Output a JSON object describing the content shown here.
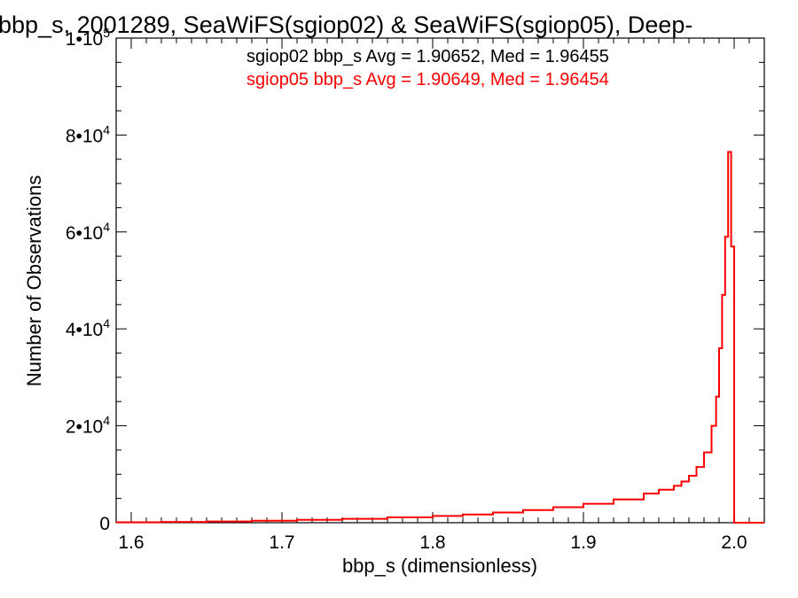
{
  "chart_data": {
    "type": "line",
    "title": "bbp_s, 2001289, SeaWiFS(sgiop02) & SeaWiFS(sgiop05), Deep-",
    "xlabel": "bbp_s (dimensionless)",
    "ylabel": "Number of Observations",
    "xlim": [
      1.59,
      2.02
    ],
    "ylim": [
      0,
      100000
    ],
    "x_ticks": [
      {
        "value": 1.6,
        "label": "1.6"
      },
      {
        "value": 1.7,
        "label": "1.7"
      },
      {
        "value": 1.8,
        "label": "1.8"
      },
      {
        "value": 1.9,
        "label": "1.9"
      },
      {
        "value": 2.0,
        "label": "2.0"
      }
    ],
    "y_ticks": [
      {
        "value": 0,
        "base": "0",
        "exp": ""
      },
      {
        "value": 20000,
        "base": "2•10",
        "exp": "4"
      },
      {
        "value": 40000,
        "base": "4•10",
        "exp": "4"
      },
      {
        "value": 60000,
        "base": "6•10",
        "exp": "4"
      },
      {
        "value": 80000,
        "base": "8•10",
        "exp": "4"
      },
      {
        "value": 100000,
        "base": "1•10",
        "exp": "5"
      }
    ],
    "annotations": [
      {
        "text": "sgiop02 bbp_s Avg = 1.90652, Med = 1.96455",
        "color": "#000000"
      },
      {
        "text": "sgiop05 bbp_s Avg = 1.90649, Med = 1.96454",
        "color": "#ff0000"
      }
    ],
    "series": [
      {
        "color": "#ff0000",
        "step": true,
        "x": [
          1.59,
          1.62,
          1.65,
          1.68,
          1.71,
          1.74,
          1.77,
          1.8,
          1.82,
          1.84,
          1.86,
          1.88,
          1.9,
          1.92,
          1.94,
          1.95,
          1.96,
          1.965,
          1.97,
          1.975,
          1.98,
          1.985,
          1.988,
          1.99,
          1.992,
          1.994,
          1.996,
          1.998,
          2.0,
          2.002,
          2.02
        ],
        "y": [
          100,
          150,
          250,
          400,
          600,
          800,
          1100,
          1400,
          1700,
          2100,
          2600,
          3200,
          3900,
          4800,
          6000,
          6800,
          7600,
          8500,
          9700,
          11500,
          14500,
          20000,
          26000,
          36000,
          47000,
          59000,
          76500,
          57000,
          0,
          0,
          0
        ]
      }
    ]
  }
}
